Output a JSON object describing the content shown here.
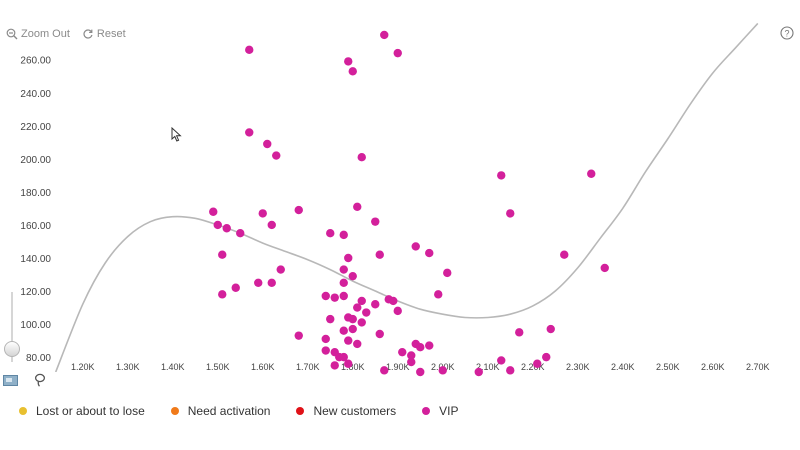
{
  "toolbar": {
    "zoom_out_label": "Zoom Out",
    "reset_label": "Reset"
  },
  "colors": {
    "vip": "#d3209b",
    "lost": "#e8c030",
    "activation": "#f07a1a",
    "new_customers": "#e01218",
    "curve": "#b8b8b8",
    "axis_text": "#444444"
  },
  "legend": [
    {
      "label": "Lost or about to lose",
      "color": "#e8c030"
    },
    {
      "label": "Need activation",
      "color": "#f07a1a"
    },
    {
      "label": "New customers",
      "color": "#e01218"
    },
    {
      "label": "VIP",
      "color": "#d3209b"
    }
  ],
  "chart_data": {
    "type": "scatter",
    "title": "",
    "xlabel": "",
    "ylabel": "",
    "xlim": [
      1.145,
      2.705
    ],
    "ylim": [
      71,
      278
    ],
    "x_ticks": [
      1.2,
      1.3,
      1.4,
      1.5,
      1.6,
      1.7,
      1.8,
      1.9,
      2.0,
      2.1,
      2.2,
      2.3,
      2.4,
      2.5,
      2.6,
      2.7
    ],
    "x_tick_labels": [
      "1.20K",
      "1.30K",
      "1.40K",
      "1.50K",
      "1.60K",
      "1.70K",
      "1.80K",
      "1.90K",
      "2.00K",
      "2.10K",
      "2.20K",
      "2.30K",
      "2.40K",
      "2.50K",
      "2.60K",
      "2.70K"
    ],
    "y_ticks": [
      80,
      100,
      120,
      140,
      160,
      180,
      200,
      220,
      240,
      260
    ],
    "y_tick_labels": [
      "80.00",
      "100.00",
      "120.00",
      "140.00",
      "160.00",
      "180.00",
      "200.00",
      "220.00",
      "240.00",
      "260.00"
    ],
    "trend_curve": {
      "name": "trend",
      "x": [
        1.14,
        1.2,
        1.25,
        1.3,
        1.35,
        1.4,
        1.45,
        1.5,
        1.55,
        1.6,
        1.65,
        1.7,
        1.75,
        1.8,
        1.85,
        1.9,
        1.95,
        2.0,
        2.05,
        2.1,
        2.15,
        2.2,
        2.25,
        2.3,
        2.35,
        2.4,
        2.45,
        2.5,
        2.55,
        2.6,
        2.65,
        2.7
      ],
      "y": [
        71,
        112,
        137,
        153,
        162,
        165,
        164,
        160,
        155,
        149,
        144,
        139,
        133,
        126,
        120,
        114,
        109,
        106,
        104,
        104,
        106,
        111,
        120,
        134,
        152,
        170,
        192,
        212,
        233,
        252,
        267,
        282
      ]
    },
    "series": [
      {
        "name": "VIP",
        "points": [
          [
            1.57,
            266
          ],
          [
            1.87,
            275
          ],
          [
            1.9,
            264
          ],
          [
            1.79,
            259
          ],
          [
            1.8,
            253
          ],
          [
            1.57,
            216
          ],
          [
            1.61,
            209
          ],
          [
            1.63,
            202
          ],
          [
            1.82,
            201
          ],
          [
            1.49,
            168
          ],
          [
            1.6,
            167
          ],
          [
            1.68,
            169
          ],
          [
            1.81,
            171
          ],
          [
            1.5,
            160
          ],
          [
            1.52,
            158
          ],
          [
            1.55,
            155
          ],
          [
            1.62,
            160
          ],
          [
            1.75,
            155
          ],
          [
            1.78,
            154
          ],
          [
            1.85,
            162
          ],
          [
            1.51,
            142
          ],
          [
            1.79,
            140
          ],
          [
            1.86,
            142
          ],
          [
            1.94,
            147
          ],
          [
            1.97,
            143
          ],
          [
            2.01,
            131
          ],
          [
            1.64,
            133
          ],
          [
            1.59,
            125
          ],
          [
            1.62,
            125
          ],
          [
            1.54,
            122
          ],
          [
            1.51,
            118
          ],
          [
            1.78,
            133
          ],
          [
            1.8,
            129
          ],
          [
            1.78,
            125
          ],
          [
            1.74,
            117
          ],
          [
            1.76,
            116
          ],
          [
            1.78,
            117
          ],
          [
            1.88,
            115
          ],
          [
            1.89,
            114
          ],
          [
            1.99,
            118
          ],
          [
            1.82,
            114
          ],
          [
            1.81,
            110
          ],
          [
            1.75,
            103
          ],
          [
            1.79,
            104
          ],
          [
            1.8,
            103
          ],
          [
            1.83,
            107
          ],
          [
            1.82,
            101
          ],
          [
            1.85,
            112
          ],
          [
            1.9,
            108
          ],
          [
            1.78,
            96
          ],
          [
            1.68,
            93
          ],
          [
            1.74,
            91
          ],
          [
            1.8,
            97
          ],
          [
            1.86,
            94
          ],
          [
            1.79,
            90
          ],
          [
            1.77,
            80
          ],
          [
            1.78,
            80
          ],
          [
            1.81,
            88
          ],
          [
            1.74,
            84
          ],
          [
            1.76,
            83
          ],
          [
            1.76,
            75
          ],
          [
            1.79,
            76
          ],
          [
            1.87,
            72
          ],
          [
            1.91,
            83
          ],
          [
            1.93,
            81
          ],
          [
            1.94,
            88
          ],
          [
            1.95,
            86
          ],
          [
            1.97,
            87
          ],
          [
            1.93,
            77
          ],
          [
            1.95,
            71
          ],
          [
            2.0,
            72
          ],
          [
            2.08,
            71
          ],
          [
            2.13,
            78
          ],
          [
            2.15,
            72
          ],
          [
            2.13,
            190
          ],
          [
            2.15,
            167
          ],
          [
            2.33,
            191
          ],
          [
            2.27,
            142
          ],
          [
            2.36,
            134
          ],
          [
            2.17,
            95
          ],
          [
            2.24,
            97
          ],
          [
            2.21,
            76
          ],
          [
            2.23,
            80
          ]
        ]
      }
    ]
  }
}
